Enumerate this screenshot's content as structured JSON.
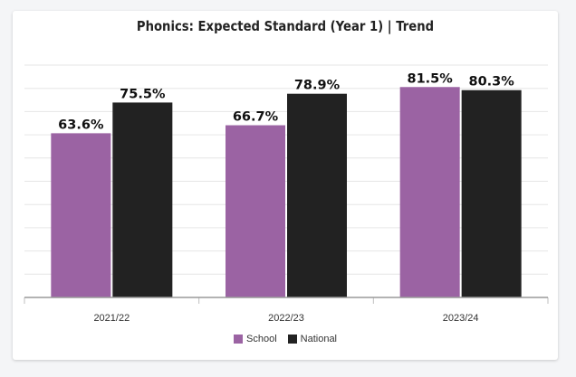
{
  "chart_data": {
    "type": "bar",
    "title": "Phonics: Expected Standard (Year 1) | Trend",
    "categories": [
      "2021/22",
      "2022/23",
      "2023/24"
    ],
    "series": [
      {
        "name": "School",
        "values": [
          63.6,
          66.7,
          81.5
        ],
        "color": "#9b63a3",
        "labels": [
          "63.6%",
          "66.7%",
          "81.5%"
        ]
      },
      {
        "name": "National",
        "values": [
          75.5,
          78.9,
          80.3
        ],
        "color": "#222222",
        "labels": [
          "75.5%",
          "78.9%",
          "80.3%"
        ]
      }
    ],
    "ylim": [
      0,
      90
    ],
    "grid": true,
    "legend_position": "bottom"
  }
}
